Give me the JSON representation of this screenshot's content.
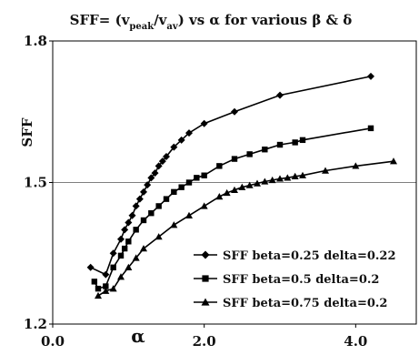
{
  "chart_data": {
    "type": "line",
    "title": {
      "prefix": "SFF= (v",
      "sub1": "peak",
      "mid": "/v",
      "sub2": "av",
      "suffix": ")  vs  α  for various  β & δ"
    },
    "xlabel": "α",
    "ylabel": "SFF",
    "xlim": [
      0.0,
      4.8
    ],
    "ylim": [
      1.2,
      1.8
    ],
    "xticks": [
      "0.0",
      "2.0",
      "4.0"
    ],
    "yticks": [
      "1.2",
      "1.5",
      "1.8"
    ],
    "grid": "horizontal",
    "legend_position": "bottom-right",
    "series": [
      {
        "name": "SFF beta=0.25 delta=0.22",
        "marker": "diamond",
        "x": [
          0.5,
          0.7,
          0.8,
          0.9,
          0.95,
          1.0,
          1.05,
          1.1,
          1.15,
          1.2,
          1.25,
          1.3,
          1.35,
          1.4,
          1.45,
          1.5,
          1.6,
          1.7,
          1.8,
          2.0,
          2.4,
          3.0,
          4.2
        ],
        "y": [
          1.32,
          1.305,
          1.35,
          1.38,
          1.4,
          1.415,
          1.43,
          1.45,
          1.465,
          1.48,
          1.495,
          1.51,
          1.52,
          1.535,
          1.545,
          1.555,
          1.575,
          1.59,
          1.605,
          1.625,
          1.65,
          1.685,
          1.725
        ]
      },
      {
        "name": "SFF beta=0.5 delta=0.2",
        "marker": "square",
        "x": [
          0.55,
          0.6,
          0.7,
          0.8,
          0.9,
          0.95,
          1.0,
          1.1,
          1.2,
          1.3,
          1.4,
          1.5,
          1.6,
          1.7,
          1.8,
          1.9,
          2.0,
          2.2,
          2.4,
          2.6,
          2.8,
          3.0,
          3.2,
          3.3,
          4.2
        ],
        "y": [
          1.29,
          1.275,
          1.28,
          1.32,
          1.345,
          1.36,
          1.375,
          1.4,
          1.42,
          1.435,
          1.45,
          1.465,
          1.48,
          1.49,
          1.5,
          1.51,
          1.515,
          1.535,
          1.55,
          1.56,
          1.57,
          1.58,
          1.585,
          1.59,
          1.615
        ]
      },
      {
        "name": "SFF beta=0.75 delta=0.2",
        "marker": "triangle",
        "x": [
          0.6,
          0.7,
          0.8,
          0.9,
          1.0,
          1.1,
          1.2,
          1.4,
          1.6,
          1.8,
          2.0,
          2.2,
          2.3,
          2.4,
          2.5,
          2.6,
          2.7,
          2.8,
          2.9,
          3.0,
          3.1,
          3.2,
          3.3,
          3.6,
          4.0,
          4.5
        ],
        "y": [
          1.26,
          1.27,
          1.275,
          1.3,
          1.32,
          1.34,
          1.36,
          1.385,
          1.41,
          1.43,
          1.45,
          1.47,
          1.478,
          1.484,
          1.49,
          1.494,
          1.498,
          1.502,
          1.505,
          1.508,
          1.51,
          1.513,
          1.515,
          1.525,
          1.535,
          1.545
        ]
      }
    ]
  }
}
